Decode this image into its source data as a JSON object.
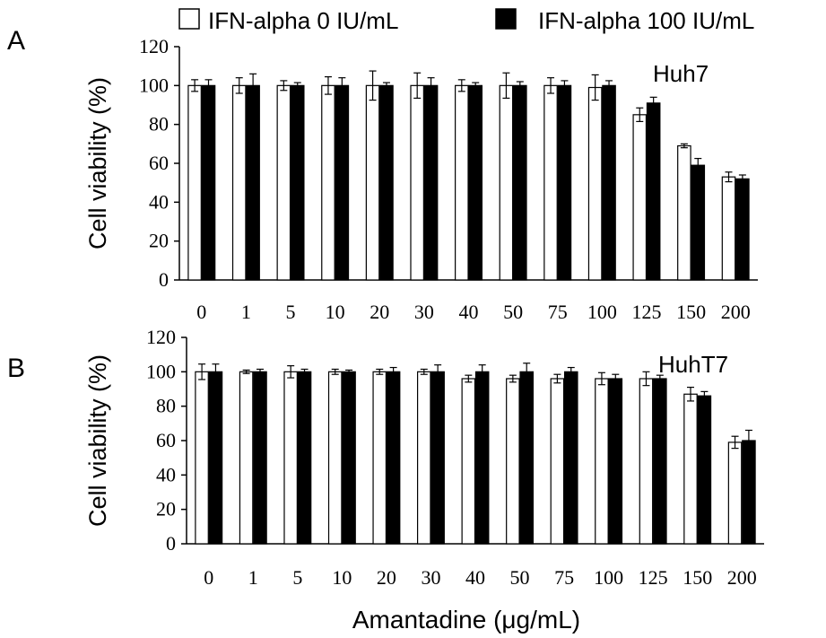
{
  "legend": {
    "items": [
      {
        "label": "IFN-alpha 0 IU/mL",
        "fill": "#ffffff"
      },
      {
        "label": "IFN-alpha 100 IU/mL",
        "fill": "#000000"
      }
    ]
  },
  "xlabel": "Amantadine (μg/mL)",
  "chart_data": [
    {
      "type": "bar",
      "panel_label": "A",
      "annotation": "Huh7",
      "ylabel": "Cell viability (%)",
      "ylim": [
        0,
        120
      ],
      "yticks": [
        0,
        20,
        40,
        60,
        80,
        100,
        120
      ],
      "categories": [
        "0",
        "1",
        "5",
        "10",
        "20",
        "30",
        "40",
        "50",
        "75",
        "100",
        "125",
        "150",
        "200"
      ],
      "series": [
        {
          "name": "IFN-alpha 0 IU/mL",
          "color": "#ffffff",
          "values": [
            100,
            100,
            100,
            100,
            100,
            100,
            100,
            100,
            100,
            99,
            85,
            69,
            53
          ],
          "errors": [
            3,
            4,
            2.5,
            4.5,
            7.5,
            6.5,
            3,
            6.5,
            4,
            6.5,
            3.5,
            1,
            2.5
          ]
        },
        {
          "name": "IFN-alpha 100 IU/mL",
          "color": "#000000",
          "values": [
            100,
            100,
            100,
            100,
            100,
            100,
            100,
            100,
            100,
            100,
            91,
            59,
            52
          ],
          "errors": [
            3,
            6,
            1.5,
            4,
            1.5,
            4,
            1.5,
            2,
            2.5,
            2.5,
            3,
            3.5,
            2
          ]
        }
      ],
      "grid": false
    },
    {
      "type": "bar",
      "panel_label": "B",
      "annotation": "HuhT7",
      "ylabel": "Cell viability (%)",
      "ylim": [
        0,
        120
      ],
      "yticks": [
        0,
        20,
        40,
        60,
        80,
        100,
        120
      ],
      "categories": [
        "0",
        "1",
        "5",
        "10",
        "20",
        "30",
        "40",
        "50",
        "75",
        "100",
        "125",
        "150",
        "200"
      ],
      "series": [
        {
          "name": "IFN-alpha 0 IU/mL",
          "color": "#ffffff",
          "values": [
            100,
            100,
            100,
            100,
            100,
            100,
            96,
            96,
            96,
            96,
            96,
            87,
            59
          ],
          "errors": [
            4.5,
            1,
            3.5,
            1.5,
            1.5,
            1.5,
            2,
            2,
            2.5,
            3.5,
            4,
            4,
            3.5
          ]
        },
        {
          "name": "IFN-alpha 100 IU/mL",
          "color": "#000000",
          "values": [
            100,
            100,
            100,
            100,
            100,
            100,
            100,
            100,
            100,
            96,
            96,
            86,
            60
          ],
          "errors": [
            4.5,
            1.5,
            1.5,
            1,
            2.5,
            4,
            4,
            5,
            2.5,
            2.5,
            2,
            2.5,
            6
          ]
        }
      ],
      "grid": false
    }
  ]
}
